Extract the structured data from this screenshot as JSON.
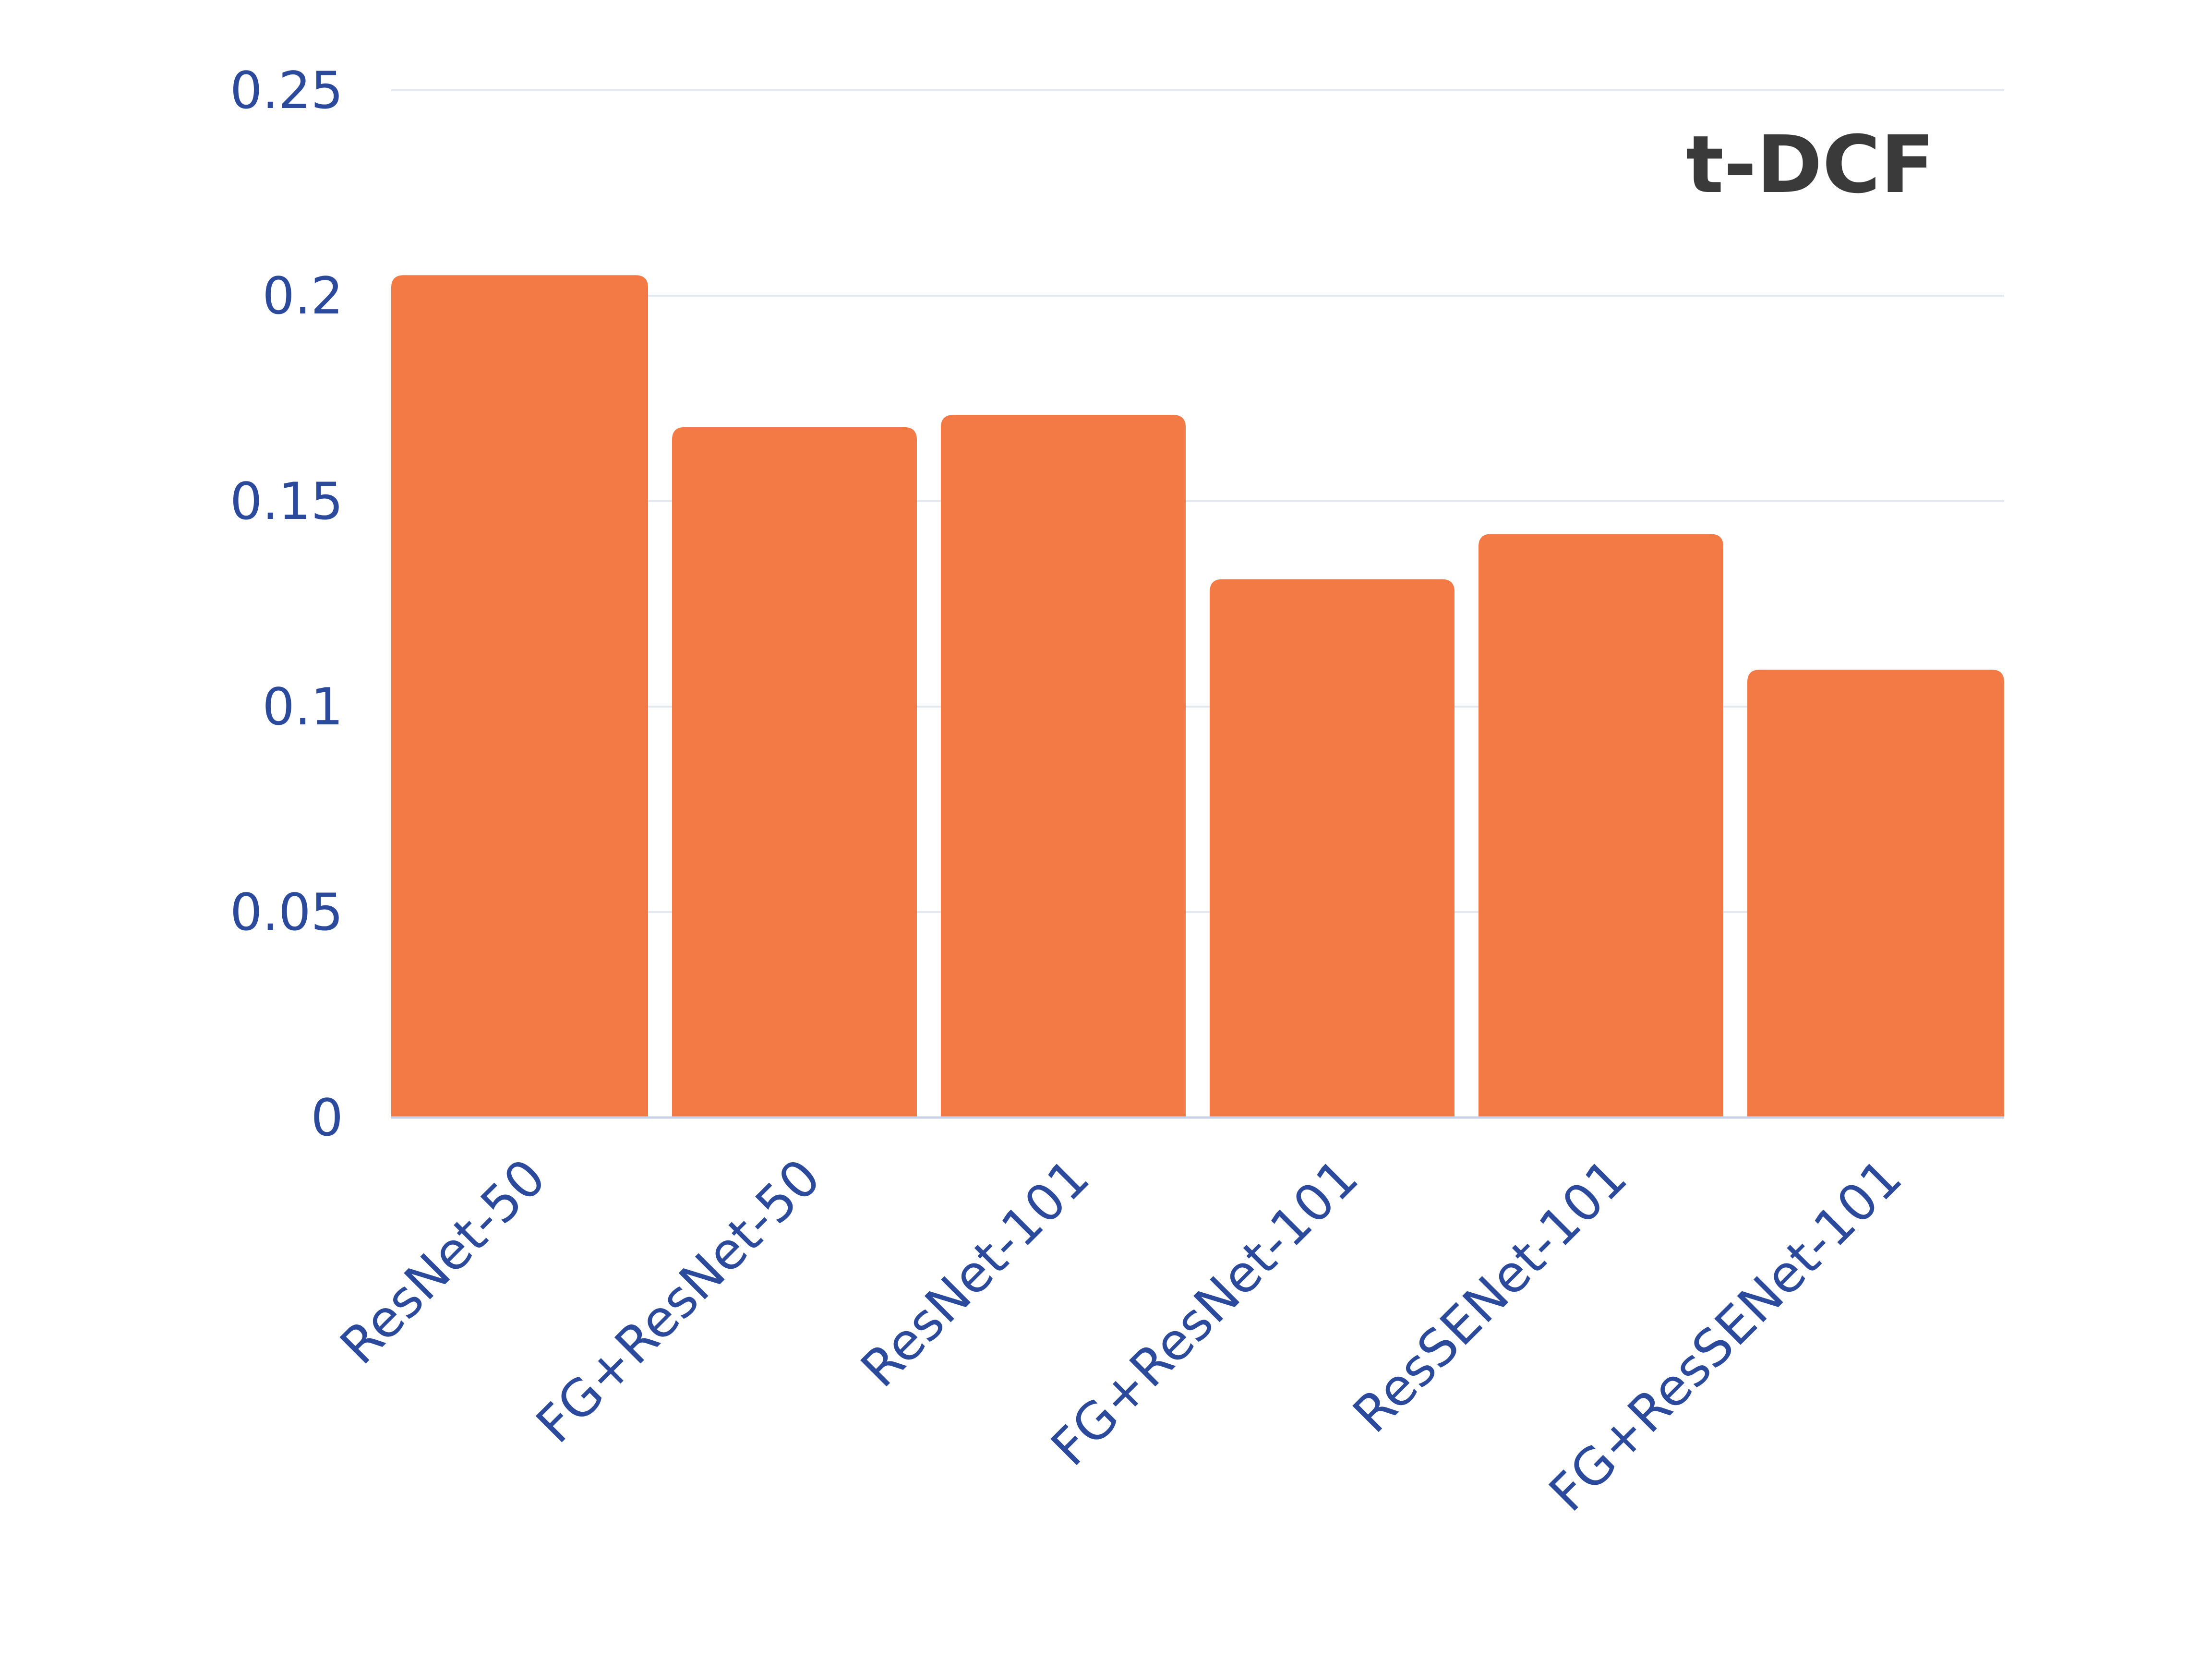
{
  "chart_data": {
    "type": "bar",
    "title": "t-DCF",
    "categories": [
      "ResNet-50",
      "FG+ResNet-50",
      "ResNet-101",
      "FG+ResNet-101",
      "ResSENet-101",
      "FG+ResSENet-101"
    ],
    "values": [
      0.205,
      0.168,
      0.171,
      0.131,
      0.142,
      0.109
    ],
    "ylim": [
      0,
      0.25
    ],
    "yticks": [
      "0",
      "0.05",
      "0.1",
      "0.15",
      "0.2",
      "0.25"
    ],
    "ytick_values": [
      0,
      0.05,
      0.1,
      0.15,
      0.2,
      0.25
    ],
    "xlabel": "",
    "ylabel": "",
    "grid": true,
    "colors": {
      "bar": "#F37A45",
      "axis_text": "#2B4A9B",
      "title": "#3A3A3A",
      "grid": "#E3E8F1",
      "baseline": "#C9D3E6"
    }
  }
}
